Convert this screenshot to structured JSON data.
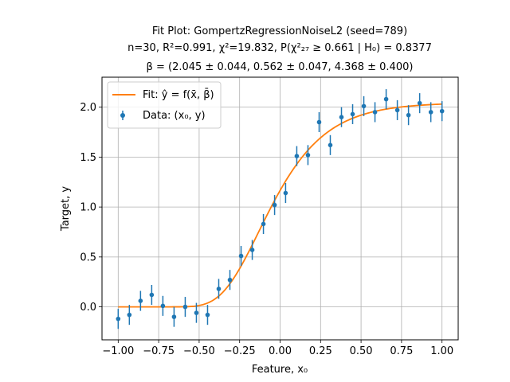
{
  "chart_data": {
    "type": "scatter",
    "title_lines": [
      "Fit Plot: GompertzRegressionNoiseL2 (seed=789)",
      "n=30, R²=0.991, χ²=19.832, P(χ²₂₇ ≥ 0.661 | H₀) = 0.8377",
      "β = (2.045 ± 0.044, 0.562 ± 0.047, 4.368 ± 0.400)"
    ],
    "xlabel": "Feature, x₀",
    "ylabel": "Target, y",
    "xlim": [
      -1.1,
      1.1
    ],
    "ylim": [
      -0.33,
      2.3
    ],
    "xticks": [
      -1.0,
      -0.75,
      -0.5,
      -0.25,
      0.0,
      0.25,
      0.5,
      0.75,
      1.0
    ],
    "xtick_labels": [
      "−1.00",
      "−0.75",
      "−0.50",
      "−0.25",
      "0.00",
      "0.25",
      "0.50",
      "0.75",
      "1.00"
    ],
    "yticks": [
      0.0,
      0.5,
      1.0,
      1.5,
      2.0
    ],
    "ytick_labels": [
      "0.0",
      "0.5",
      "1.0",
      "1.5",
      "2.0"
    ],
    "grid": true,
    "legend_position": "top-left",
    "colors": {
      "data": "#1f77b4",
      "fit": "#ff7f0e"
    },
    "fit": {
      "name": "Fit: ŷ = f(x̄, β̄)",
      "model": "gompertz",
      "params": [
        2.045,
        0.562,
        4.368
      ]
    },
    "series": [
      {
        "name": "Data: (x₀, y)",
        "x": [
          -1.0,
          -0.931,
          -0.862,
          -0.793,
          -0.724,
          -0.655,
          -0.586,
          -0.517,
          -0.448,
          -0.379,
          -0.31,
          -0.241,
          -0.172,
          -0.103,
          -0.034,
          0.034,
          0.103,
          0.172,
          0.241,
          0.31,
          0.379,
          0.448,
          0.517,
          0.586,
          0.655,
          0.724,
          0.793,
          0.862,
          0.931,
          1.0
        ],
        "y": [
          -0.12,
          -0.08,
          0.06,
          0.12,
          0.01,
          -0.1,
          0.0,
          -0.06,
          -0.08,
          0.18,
          0.27,
          0.51,
          0.57,
          0.83,
          1.02,
          1.14,
          1.51,
          1.52,
          1.85,
          1.62,
          1.9,
          1.93,
          2.01,
          1.95,
          2.08,
          1.97,
          1.92,
          2.04,
          1.95,
          1.96
        ],
        "yerr": 0.1
      }
    ]
  }
}
